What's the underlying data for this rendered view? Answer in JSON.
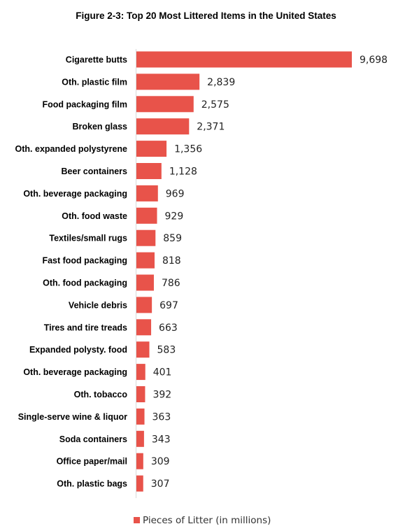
{
  "chart_data": {
    "type": "bar",
    "orientation": "horizontal",
    "title": "Figure 2-3: Top 20 Most Littered Items in the United States",
    "categories": [
      "Cigarette butts",
      "Oth. plastic film",
      "Food packaging film",
      "Broken glass",
      "Oth. expanded polystyrene",
      "Beer containers",
      "Oth. beverage packaging",
      "Oth. food waste",
      "Textiles/small rugs",
      "Fast food packaging",
      "Oth. food packaging",
      "Vehicle debris",
      "Tires and tire treads",
      "Expanded polysty. food",
      "Oth. beverage packaging",
      "Oth. tobacco",
      "Single-serve wine & liquor",
      "Soda containers",
      "Office paper/mail",
      "Oth. plastic bags"
    ],
    "series": [
      {
        "name": "Pieces of Litter (in millions)",
        "values": [
          9698,
          2839,
          2575,
          2371,
          1356,
          1128,
          969,
          929,
          859,
          818,
          786,
          697,
          663,
          583,
          401,
          392,
          363,
          343,
          309,
          307
        ],
        "data_labels": [
          "9,698",
          "2,839",
          "2,575",
          "2,371",
          "1,356",
          "1,128",
          "969",
          "929",
          "859",
          "818",
          "786",
          "697",
          "663",
          "583",
          "401",
          "392",
          "363",
          "343",
          "309",
          "307"
        ],
        "color": "#E8534A"
      }
    ],
    "xlim": [
      0,
      9698
    ],
    "grid": false,
    "legend_position": "bottom"
  }
}
